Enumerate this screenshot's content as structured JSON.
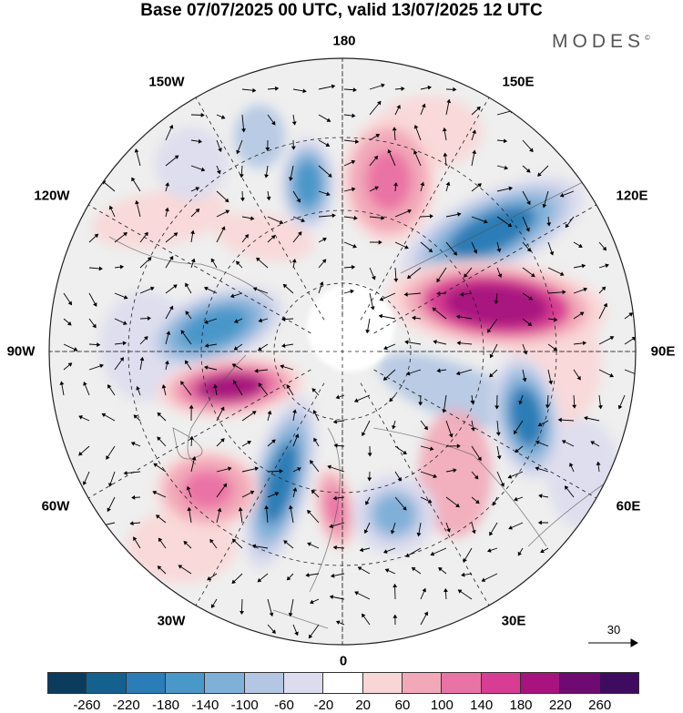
{
  "header": {
    "title": "Base 07/07/2025 00 UTC, valid 13/07/2025 12 UTC",
    "brand": "MODES"
  },
  "map": {
    "projection": "north-polar-stereographic",
    "longitude_labels": {
      "top": "180",
      "top_left": "150W",
      "top_right": "150E",
      "upper_left": "120W",
      "upper_right": "120E",
      "left": "90W",
      "right": "90E",
      "lower_left": "60W",
      "lower_right": "60E",
      "bottom_left": "30W",
      "bottom_right": "30E",
      "bottom": "0"
    },
    "reference_vector_label": "30",
    "anomalies": [
      {
        "region": "Siberia (east of 120E)",
        "sign": "negative",
        "level": -180
      },
      {
        "region": "North Pacific near 160W",
        "sign": "negative",
        "level": -160
      },
      {
        "region": "Bering Sea near 170E",
        "sign": "positive",
        "level": 140
      },
      {
        "region": "Central Siberia near 90E",
        "sign": "positive",
        "level": 220
      },
      {
        "region": "Kazakhstan near 60E",
        "sign": "negative",
        "level": -180
      },
      {
        "region": "Canada near 100W",
        "sign": "negative",
        "level": -160
      },
      {
        "region": "Labrador Sea near 60W",
        "sign": "positive",
        "level": 200
      },
      {
        "region": "North Atlantic near 30W",
        "sign": "negative",
        "level": -180
      },
      {
        "region": "Central Atlantic near 50W",
        "sign": "positive",
        "level": 140
      },
      {
        "region": "Western Europe near 5E",
        "sign": "positive",
        "level": 140
      },
      {
        "region": "Eastern Europe near 30E",
        "sign": "negative",
        "level": -100
      }
    ]
  },
  "colorbar": {
    "ticks": [
      "-260",
      "-220",
      "-180",
      "-140",
      "-100",
      "-60",
      "-20",
      "20",
      "60",
      "100",
      "140",
      "180",
      "220",
      "260"
    ],
    "colors": [
      "#0b3c5d",
      "#14618f",
      "#2a7db6",
      "#4a97c9",
      "#7fb0d8",
      "#b3c6e3",
      "#dcdcee",
      "#ffffff",
      "#f9d6d6",
      "#f2a8b8",
      "#ea73a5",
      "#d83d93",
      "#a8137f",
      "#6f0a72",
      "#3f0b60"
    ]
  }
}
